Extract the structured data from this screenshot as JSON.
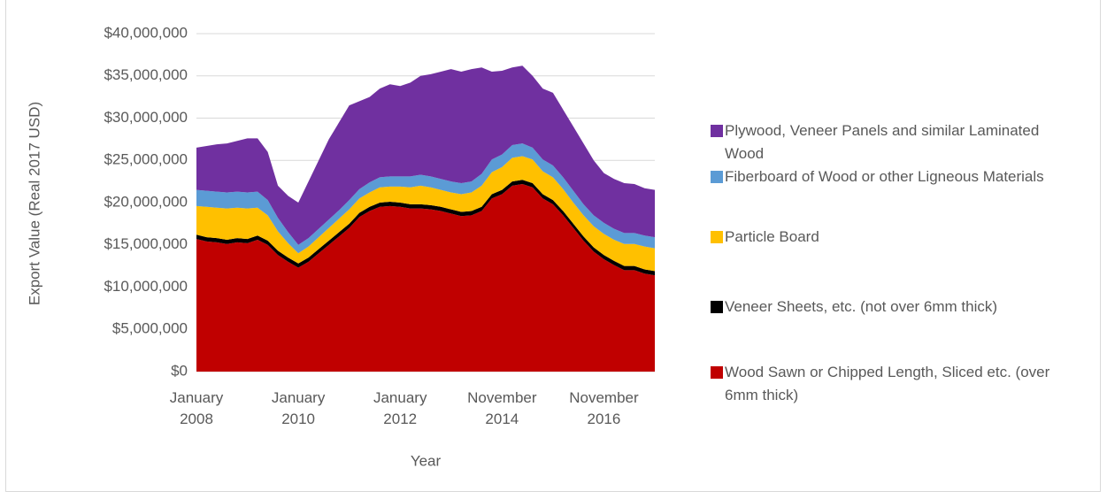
{
  "chart_data": {
    "type": "stacked_area",
    "y_axis_label": "Export Value (Real 2017 USD)",
    "x_axis_label": "Year",
    "categories": [
      "January 2008",
      null,
      null,
      null,
      null,
      null,
      null,
      null,
      null,
      null,
      "January 2010",
      null,
      null,
      null,
      null,
      null,
      null,
      null,
      null,
      null,
      "January 2012",
      null,
      null,
      null,
      null,
      null,
      null,
      null,
      null,
      null,
      "November 2014",
      null,
      null,
      null,
      null,
      null,
      null,
      null,
      null,
      null,
      "November 2016",
      null,
      null,
      null,
      null,
      null
    ],
    "series": [
      {
        "name": "Wood Sawn or Chipped Length, Sliced etc. (over 6mm thick)",
        "color": "#c00000",
        "values": [
          15700000,
          15400000,
          15300000,
          15100000,
          15300000,
          15200000,
          15600000,
          15000000,
          13800000,
          13000000,
          12300000,
          13000000,
          14000000,
          15000000,
          16000000,
          17000000,
          18300000,
          19000000,
          19500000,
          19600000,
          19500000,
          19300000,
          19300000,
          19200000,
          19000000,
          18700000,
          18400000,
          18500000,
          19000000,
          20500000,
          21000000,
          22000000,
          22200000,
          21800000,
          20500000,
          19800000,
          18500000,
          17000000,
          15500000,
          14200000,
          13300000,
          12600000,
          12000000,
          12000000,
          11600000,
          11400000
        ]
      },
      {
        "name": "Veneer Sheets, etc. (not over 6mm thick)",
        "color": "#000000",
        "values": [
          500000,
          500000,
          500000,
          500000,
          500000,
          500000,
          500000,
          500000,
          500000,
          500000,
          500000,
          500000,
          500000,
          500000,
          500000,
          500000,
          500000,
          500000,
          500000,
          500000,
          500000,
          500000,
          500000,
          500000,
          500000,
          500000,
          500000,
          500000,
          500000,
          500000,
          500000,
          500000,
          500000,
          500000,
          500000,
          500000,
          500000,
          500000,
          500000,
          500000,
          500000,
          500000,
          500000,
          500000,
          500000,
          500000
        ]
      },
      {
        "name": "Particle Board",
        "color": "#ffc000",
        "values": [
          3400000,
          3600000,
          3600000,
          3700000,
          3600000,
          3600000,
          3300000,
          3000000,
          2300000,
          1700000,
          1200000,
          1300000,
          1400000,
          1500000,
          1600000,
          1700000,
          1700000,
          1700000,
          1800000,
          1800000,
          1900000,
          2000000,
          2200000,
          2100000,
          2000000,
          2000000,
          2100000,
          2200000,
          2500000,
          2600000,
          2700000,
          2800000,
          2800000,
          2800000,
          2700000,
          2700000,
          2600000,
          2500000,
          2500000,
          2500000,
          2500000,
          2500000,
          2600000,
          2600000,
          2700000,
          2700000
        ]
      },
      {
        "name": "Fiberboard of Wood or other Ligneous Materials",
        "color": "#5b9bd5",
        "values": [
          1900000,
          1900000,
          1900000,
          1900000,
          1900000,
          1900000,
          1900000,
          1800000,
          1600000,
          1300000,
          1000000,
          1000000,
          1000000,
          1000000,
          1000000,
          1100000,
          1100000,
          1200000,
          1200000,
          1200000,
          1200000,
          1300000,
          1300000,
          1300000,
          1300000,
          1300000,
          1300000,
          1300000,
          1400000,
          1500000,
          1500000,
          1500000,
          1500000,
          1400000,
          1400000,
          1400000,
          1400000,
          1400000,
          1300000,
          1300000,
          1300000,
          1300000,
          1300000,
          1300000,
          1300000,
          1300000
        ]
      },
      {
        "name": "Plywood, Veneer Panels and similar Laminated Wood",
        "color": "#7030a0",
        "values": [
          5000000,
          5300000,
          5600000,
          5800000,
          6000000,
          6400000,
          6300000,
          5700000,
          3800000,
          4300000,
          5000000,
          6700000,
          8100000,
          9500000,
          10400000,
          11200000,
          10400000,
          10100000,
          10500000,
          10900000,
          10700000,
          11100000,
          11700000,
          12100000,
          12700000,
          13300000,
          13200000,
          13300000,
          12600000,
          10400000,
          9900000,
          9200000,
          9200000,
          8500000,
          8400000,
          8600000,
          8000000,
          7600000,
          7200000,
          6500000,
          5900000,
          5900000,
          5900000,
          5800000,
          5600000,
          5600000
        ]
      }
    ],
    "ylim": [
      0,
      40000000
    ],
    "yticks": [
      {
        "value": 0,
        "label": "$0"
      },
      {
        "value": 5000000,
        "label": "$5,000,000"
      },
      {
        "value": 10000000,
        "label": "$10,000,000"
      },
      {
        "value": 15000000,
        "label": "$15,000,000"
      },
      {
        "value": 20000000,
        "label": "$20,000,000"
      },
      {
        "value": 25000000,
        "label": "$25,000,000"
      },
      {
        "value": 30000000,
        "label": "$30,000,000"
      },
      {
        "value": 35000000,
        "label": "$35,000,000"
      },
      {
        "value": 40000000,
        "label": "$40,000,000"
      }
    ],
    "grid": true,
    "legend": "right"
  }
}
